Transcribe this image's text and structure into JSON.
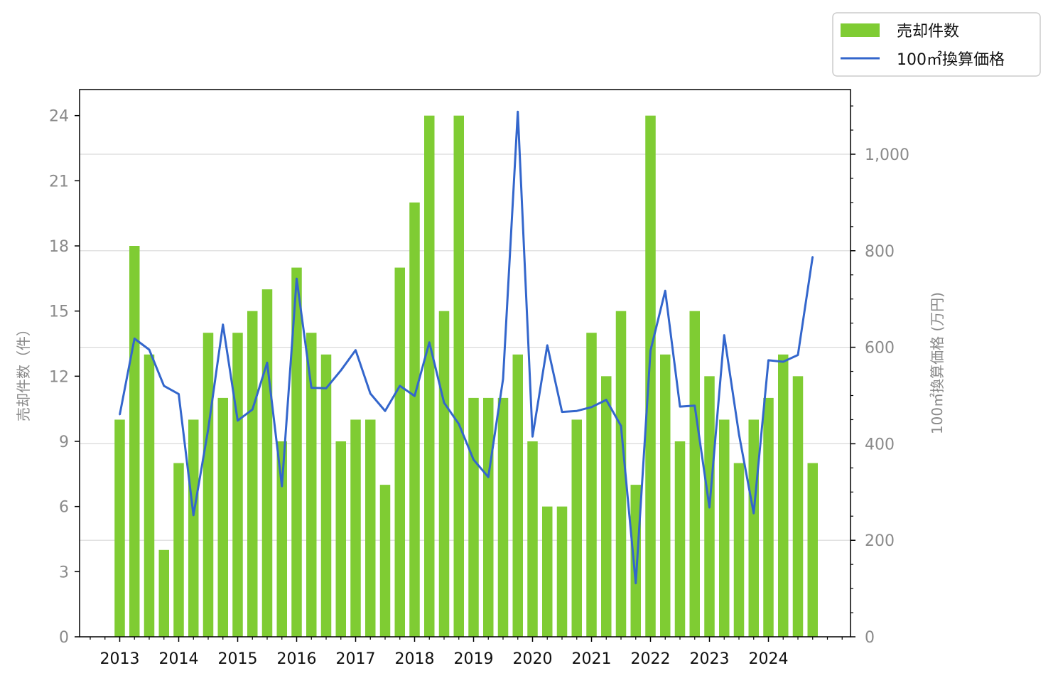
{
  "chart_data": {
    "type": "bar+line",
    "x_tick_labels": [
      "2013",
      "2014",
      "2015",
      "2016",
      "2017",
      "2018",
      "2019",
      "2020",
      "2021",
      "2022",
      "2023",
      "2024"
    ],
    "left_axis": {
      "label": "売却件数（件）",
      "ticks": [
        "0",
        "3",
        "6",
        "9",
        "12",
        "15",
        "18",
        "21",
        "24"
      ],
      "ylim": [
        0,
        25.2
      ]
    },
    "right_axis": {
      "label": "100㎡換算価格 (万円)",
      "ticks": [
        "0",
        "200",
        "400",
        "600",
        "800",
        "1,000"
      ],
      "ylim": [
        0,
        1134
      ]
    },
    "grid": "horizontal (right axis)",
    "legend_position": "top-right, outside plot",
    "series": [
      {
        "name": "売却件数",
        "kind": "bar",
        "axis": "left",
        "color": "#7fcc33",
        "values": [
          10,
          18,
          13,
          4,
          8,
          10,
          14,
          11,
          14,
          15,
          16,
          9,
          17,
          14,
          13,
          9,
          10,
          10,
          7,
          17,
          20,
          24,
          15,
          24,
          11,
          11,
          11,
          13,
          9,
          6,
          6,
          10,
          14,
          12,
          15,
          7,
          24,
          13,
          9,
          15,
          12,
          10,
          8,
          10,
          11,
          13,
          12,
          8
        ]
      },
      {
        "name": "100㎡換算価格",
        "kind": "line",
        "axis": "right",
        "color": "#3366cc",
        "values": [
          460,
          618,
          595,
          520,
          503,
          252,
          430,
          647,
          448,
          471,
          568,
          312,
          742,
          516,
          515,
          552,
          594,
          504,
          468,
          520,
          499,
          610,
          485,
          441,
          367,
          331,
          534,
          1088,
          415,
          604,
          466,
          468,
          476,
          491,
          437,
          111,
          593,
          717,
          477,
          479,
          268,
          625,
          420,
          256,
          573,
          570,
          584,
          788
        ]
      }
    ],
    "period_start": "2013 Q1",
    "period_step": "quarter"
  }
}
